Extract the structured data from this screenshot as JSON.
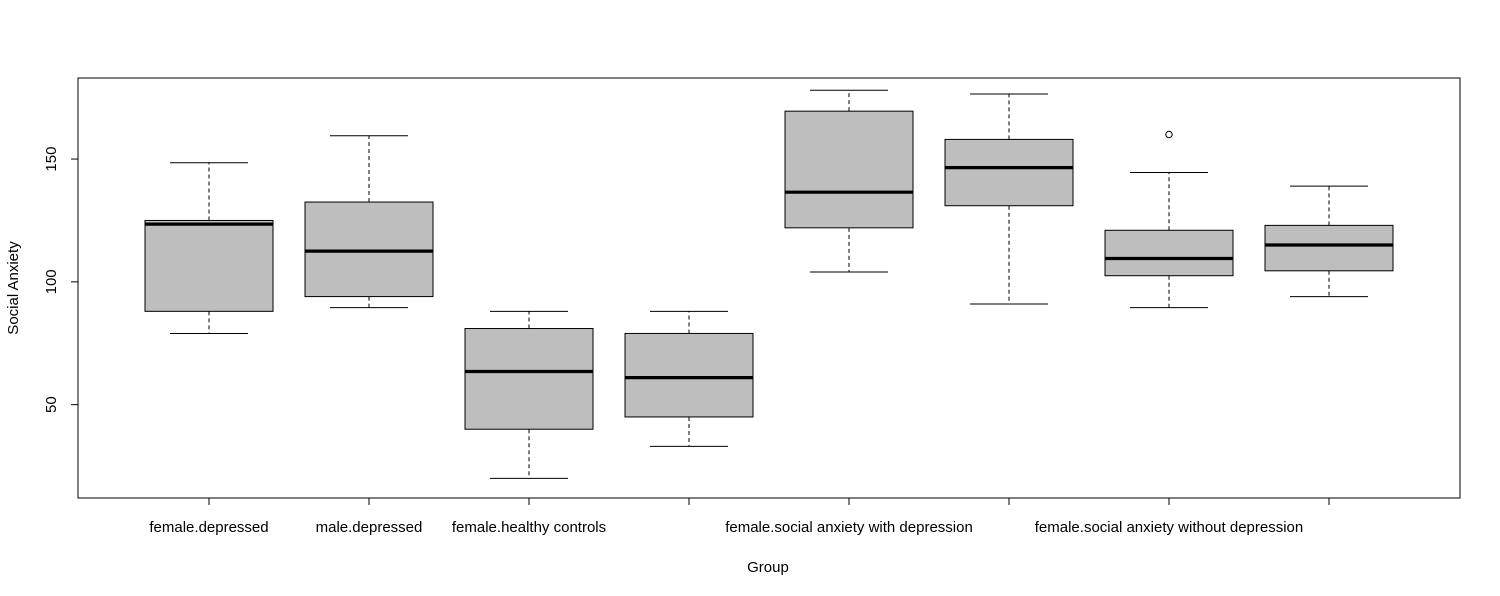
{
  "chart_data": {
    "type": "boxplot",
    "title": "",
    "xlabel": "Group",
    "ylabel": "Social Anxiety",
    "ylim": [
      12,
      183
    ],
    "yticks": [
      50,
      100,
      150
    ],
    "box_color": "#bebebe",
    "categories": [
      "female.depressed",
      "male.depressed",
      "female.healthy controls",
      "",
      "female.social anxiety with depression",
      "",
      "female.social anxiety without depression",
      ""
    ],
    "boxes": [
      {
        "whisker_low": 79,
        "q1": 88,
        "median": 123.5,
        "q3": 125,
        "whisker_high": 148.5,
        "outliers": []
      },
      {
        "whisker_low": 89.5,
        "q1": 94,
        "median": 112.5,
        "q3": 132.5,
        "whisker_high": 159.5,
        "outliers": []
      },
      {
        "whisker_low": 20,
        "q1": 40,
        "median": 63.5,
        "q3": 81,
        "whisker_high": 88,
        "outliers": []
      },
      {
        "whisker_low": 33,
        "q1": 45,
        "median": 61,
        "q3": 79,
        "whisker_high": 88,
        "outliers": []
      },
      {
        "whisker_low": 104,
        "q1": 122,
        "median": 136.5,
        "q3": 169.5,
        "whisker_high": 178,
        "outliers": []
      },
      {
        "whisker_low": 91,
        "q1": 131,
        "median": 146.5,
        "q3": 158,
        "whisker_high": 176.5,
        "outliers": []
      },
      {
        "whisker_low": 89.5,
        "q1": 102.5,
        "median": 109.5,
        "q3": 121,
        "whisker_high": 144.5,
        "outliers": [
          160
        ]
      },
      {
        "whisker_low": 94,
        "q1": 104.5,
        "median": 115,
        "q3": 123,
        "whisker_high": 139,
        "outliers": []
      }
    ]
  }
}
